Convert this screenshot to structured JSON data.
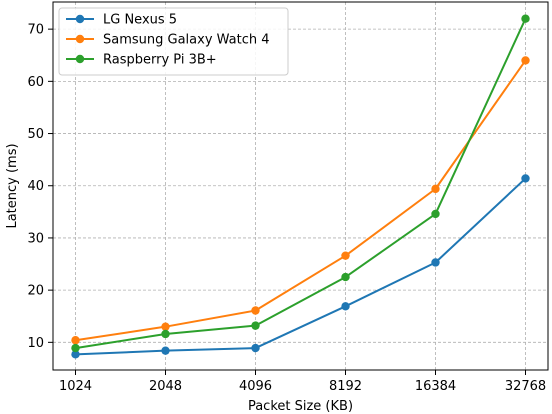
{
  "chart_data": {
    "type": "line",
    "title": "",
    "xlabel": "Packet Size (KB)",
    "ylabel": "Latency (ms)",
    "categories": [
      "1024",
      "2048",
      "4096",
      "8192",
      "16384",
      "32768"
    ],
    "ylim": [
      4.7,
      75.2
    ],
    "yticks": [
      10,
      20,
      30,
      40,
      50,
      60,
      70
    ],
    "grid": true,
    "legend_position": "top-left",
    "series": [
      {
        "name": "LG Nexus 5",
        "color": "#1f77b4",
        "values": [
          7.7,
          8.4,
          8.9,
          16.9,
          25.3,
          41.4
        ]
      },
      {
        "name": "Samsung Galaxy Watch 4",
        "color": "#ff7f0e",
        "values": [
          10.4,
          13.0,
          16.1,
          26.6,
          39.4,
          64.0
        ]
      },
      {
        "name": "Raspberry Pi 3B+",
        "color": "#2ca02c",
        "values": [
          8.9,
          11.6,
          13.2,
          22.5,
          34.6,
          72.0
        ]
      }
    ]
  }
}
